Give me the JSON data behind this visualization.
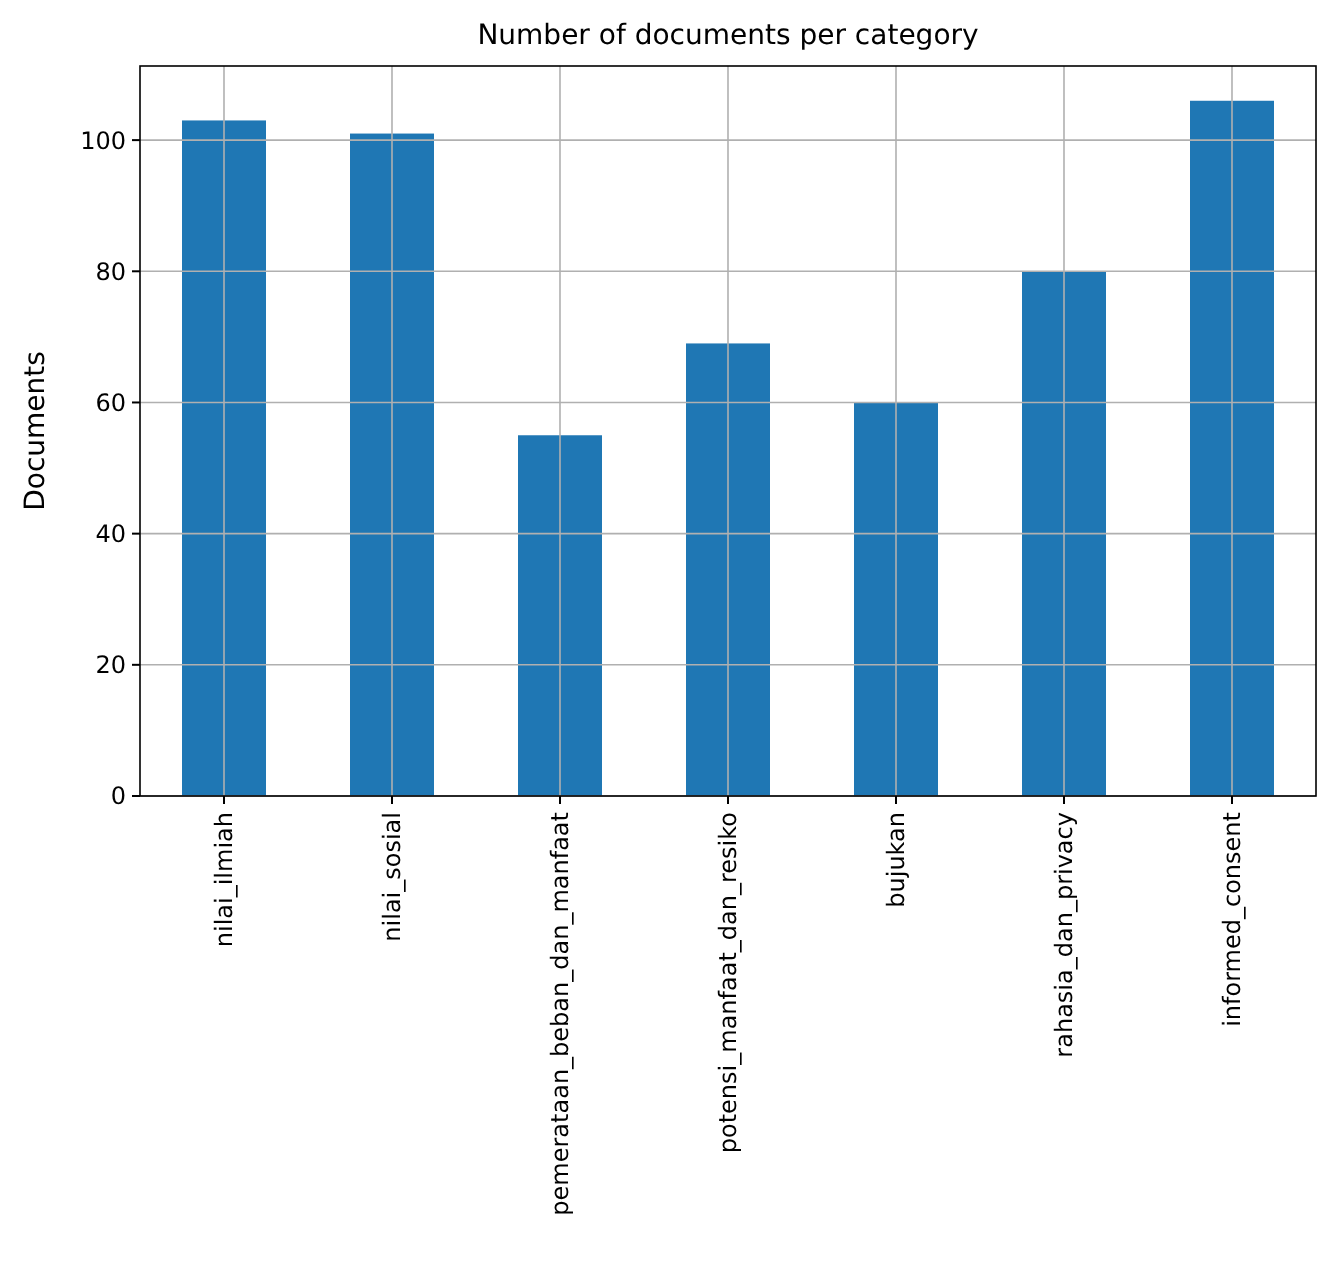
{
  "chart_data": {
    "type": "bar",
    "title": "Number of documents per category",
    "ylabel": "Documents",
    "categories": [
      "nilai_ilmiah",
      "nilai_sosial",
      "pemerataan_beban_dan_manfaat",
      "potensi_manfaat_dan_resiko",
      "bujukan",
      "rahasia_dan_privacy",
      "informed_consent"
    ],
    "values": [
      103,
      101,
      55,
      69,
      60,
      80,
      106
    ],
    "color": "#1f77b4",
    "ylim": [
      0,
      111.3
    ],
    "yticks": [
      0,
      20,
      40,
      60,
      80,
      100
    ],
    "grid": true
  }
}
